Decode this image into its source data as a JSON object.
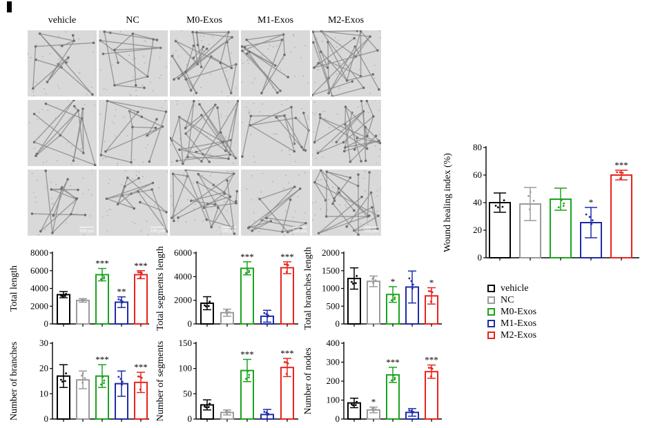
{
  "panel_letter": "I",
  "groups": [
    "vehicle",
    "NC",
    "M0-Exos",
    "M1-Exos",
    "M2-Exos"
  ],
  "colors": {
    "vehicle": "#000000",
    "NC": "#9a9a9a",
    "M0-Exos": "#1aa31a",
    "M1-Exos": "#1c2aa8",
    "M2-Exos": "#e8221c"
  },
  "micrographs": {
    "columns": [
      "vehicle",
      "NC",
      "M0-Exos",
      "M1-Exos",
      "M2-Exos"
    ],
    "rows": 3,
    "scale_bar_label": "100 μm"
  },
  "legend": {
    "items": [
      {
        "label": "vehicle",
        "color": "#000000"
      },
      {
        "label": "NC",
        "color": "#9a9a9a"
      },
      {
        "label": "M0-Exos",
        "color": "#1aa31a"
      },
      {
        "label": "M1-Exos",
        "color": "#1c2aa8"
      },
      {
        "label": "M2-Exos",
        "color": "#e8221c"
      }
    ]
  },
  "chart_data": [
    {
      "id": "total-length",
      "type": "bar",
      "ylabel": "Total length",
      "ylim": [
        0,
        8000
      ],
      "yticks": [
        0,
        2000,
        4000,
        6000,
        8000
      ],
      "categories": [
        "vehicle",
        "NC",
        "M0-Exos",
        "M1-Exos",
        "M2-Exos"
      ],
      "values": [
        3300,
        2650,
        5550,
        2450,
        5550
      ],
      "errors": [
        350,
        200,
        700,
        600,
        450
      ],
      "significance": [
        "",
        "",
        "***",
        "**",
        "***"
      ]
    },
    {
      "id": "total-segments-length",
      "type": "bar",
      "ylabel": "Total segments length",
      "ylim": [
        0,
        6000
      ],
      "yticks": [
        0,
        2000,
        4000,
        6000
      ],
      "categories": [
        "vehicle",
        "NC",
        "M0-Exos",
        "M1-Exos",
        "M2-Exos"
      ],
      "values": [
        1750,
        950,
        4700,
        650,
        4750
      ],
      "errors": [
        550,
        300,
        550,
        500,
        500
      ],
      "significance": [
        "",
        "",
        "***",
        "",
        "***"
      ]
    },
    {
      "id": "total-branches-length",
      "type": "bar",
      "ylabel": "Total branches length",
      "ylim": [
        0,
        2000
      ],
      "yticks": [
        0,
        500,
        1000,
        1500,
        2000
      ],
      "categories": [
        "vehicle",
        "NC",
        "M0-Exos",
        "M1-Exos",
        "M2-Exos"
      ],
      "values": [
        1280,
        1200,
        830,
        1040,
        790
      ],
      "errors": [
        300,
        150,
        220,
        450,
        230
      ],
      "significance": [
        "",
        "",
        "*",
        "",
        "*"
      ]
    },
    {
      "id": "number-of-branches",
      "type": "bar",
      "ylabel": "Number of branches",
      "ylim": [
        0,
        30
      ],
      "yticks": [
        0,
        10,
        20,
        30
      ],
      "categories": [
        "vehicle",
        "NC",
        "M0-Exos",
        "M1-Exos",
        "M2-Exos"
      ],
      "values": [
        17,
        15.5,
        17,
        14,
        14.5
      ],
      "errors": [
        4.5,
        3.5,
        4.5,
        5,
        4
      ],
      "significance": [
        "",
        "",
        "***",
        "",
        "***"
      ]
    },
    {
      "id": "number-of-segments",
      "type": "bar",
      "ylabel": "Number of segments",
      "ylim": [
        0,
        150
      ],
      "yticks": [
        0,
        50,
        100,
        150
      ],
      "categories": [
        "vehicle",
        "NC",
        "M0-Exos",
        "M1-Exos",
        "M2-Exos"
      ],
      "values": [
        28,
        13,
        96,
        9,
        102
      ],
      "errors": [
        10,
        5,
        22,
        10,
        18
      ],
      "significance": [
        "",
        "",
        "***",
        "",
        "***"
      ]
    },
    {
      "id": "number-of-nodes",
      "type": "bar",
      "ylabel": "Number of nodes",
      "ylim": [
        0,
        400
      ],
      "yticks": [
        0,
        100,
        200,
        300,
        400
      ],
      "categories": [
        "vehicle",
        "NC",
        "M0-Exos",
        "M1-Exos",
        "M2-Exos"
      ],
      "values": [
        85,
        48,
        233,
        35,
        250
      ],
      "errors": [
        25,
        15,
        40,
        20,
        35
      ],
      "significance": [
        "",
        "*",
        "***",
        "",
        "***"
      ]
    },
    {
      "id": "wound-healing",
      "type": "bar",
      "ylabel": "Wound healing index (%)",
      "ylim": [
        0,
        80
      ],
      "yticks": [
        0,
        20,
        40,
        60,
        80
      ],
      "categories": [
        "vehicle",
        "NC",
        "M0-Exos",
        "M1-Exos",
        "M2-Exos"
      ],
      "values": [
        40,
        39,
        42.5,
        25.5,
        60
      ],
      "errors": [
        7,
        12,
        8,
        11,
        3.5
      ],
      "significance": [
        "",
        "",
        "",
        "*",
        "***"
      ]
    }
  ]
}
